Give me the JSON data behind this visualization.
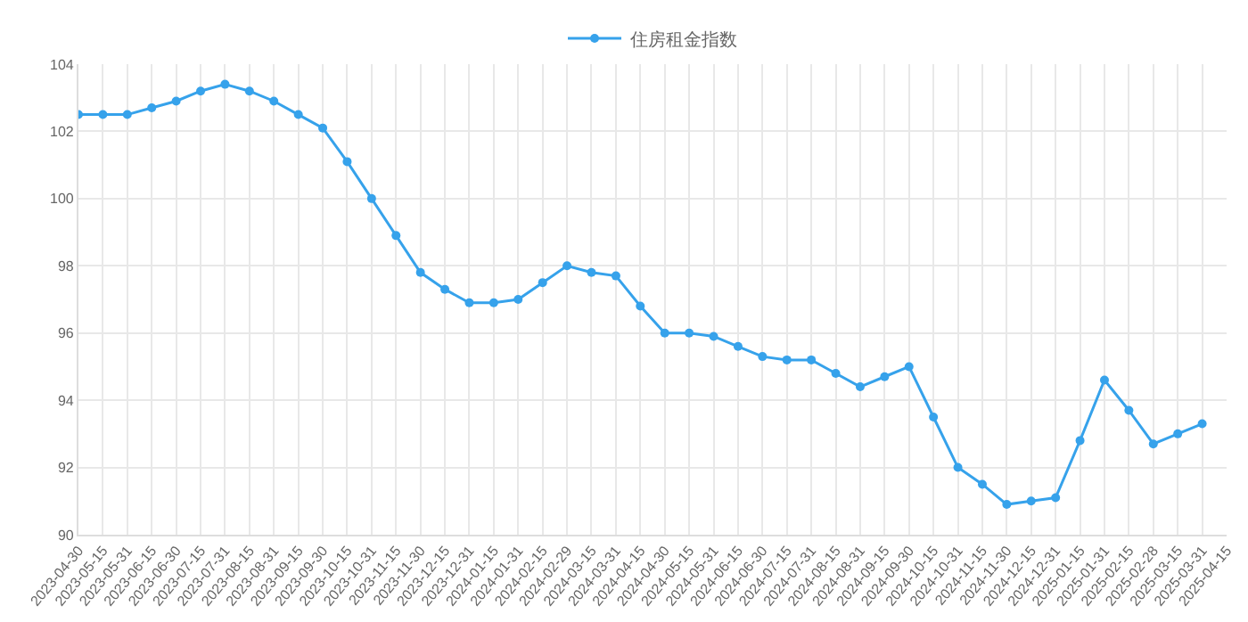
{
  "chart_data": {
    "type": "line",
    "categories": [
      "2023-04-30",
      "2023-05-15",
      "2023-05-31",
      "2023-06-15",
      "2023-06-30",
      "2023-07-15",
      "2023-07-31",
      "2023-08-15",
      "2023-08-31",
      "2023-09-15",
      "2023-09-30",
      "2023-10-15",
      "2023-10-31",
      "2023-11-15",
      "2023-11-30",
      "2023-12-15",
      "2023-12-31",
      "2024-01-15",
      "2024-01-31",
      "2024-02-15",
      "2024-02-29",
      "2024-03-15",
      "2024-03-31",
      "2024-04-15",
      "2024-04-30",
      "2024-05-15",
      "2024-05-31",
      "2024-06-15",
      "2024-06-30",
      "2024-07-15",
      "2024-07-31",
      "2024-08-15",
      "2024-08-31",
      "2024-09-15",
      "2024-09-30",
      "2024-10-15",
      "2024-10-31",
      "2024-11-15",
      "2024-11-30",
      "2024-12-15",
      "2024-12-31",
      "2025-01-15",
      "2025-01-31",
      "2025-02-15",
      "2025-02-28",
      "2025-03-15",
      "2025-03-31",
      "2025-04-15"
    ],
    "series": [
      {
        "name": "住房租金指数",
        "color": "#36a2eb",
        "values": [
          102.5,
          102.5,
          102.5,
          102.7,
          102.9,
          103.2,
          103.4,
          103.2,
          102.9,
          102.5,
          102.1,
          101.1,
          100.0,
          98.9,
          97.8,
          97.3,
          96.9,
          96.9,
          97.0,
          97.5,
          98.0,
          97.8,
          97.7,
          96.8,
          96.0,
          96.0,
          95.9,
          95.6,
          95.3,
          95.2,
          95.2,
          94.8,
          94.4,
          94.7,
          95.0,
          93.5,
          92.0,
          91.5,
          90.9,
          91.0,
          91.1,
          92.8,
          94.6,
          93.7,
          92.7,
          93.0,
          93.3,
          null
        ]
      }
    ],
    "ylim": [
      90,
      104
    ],
    "yticks": [
      90,
      92,
      94,
      96,
      98,
      100,
      102,
      104
    ],
    "grid": true,
    "legend": "top",
    "marker": "circle",
    "line_style": "solid"
  }
}
